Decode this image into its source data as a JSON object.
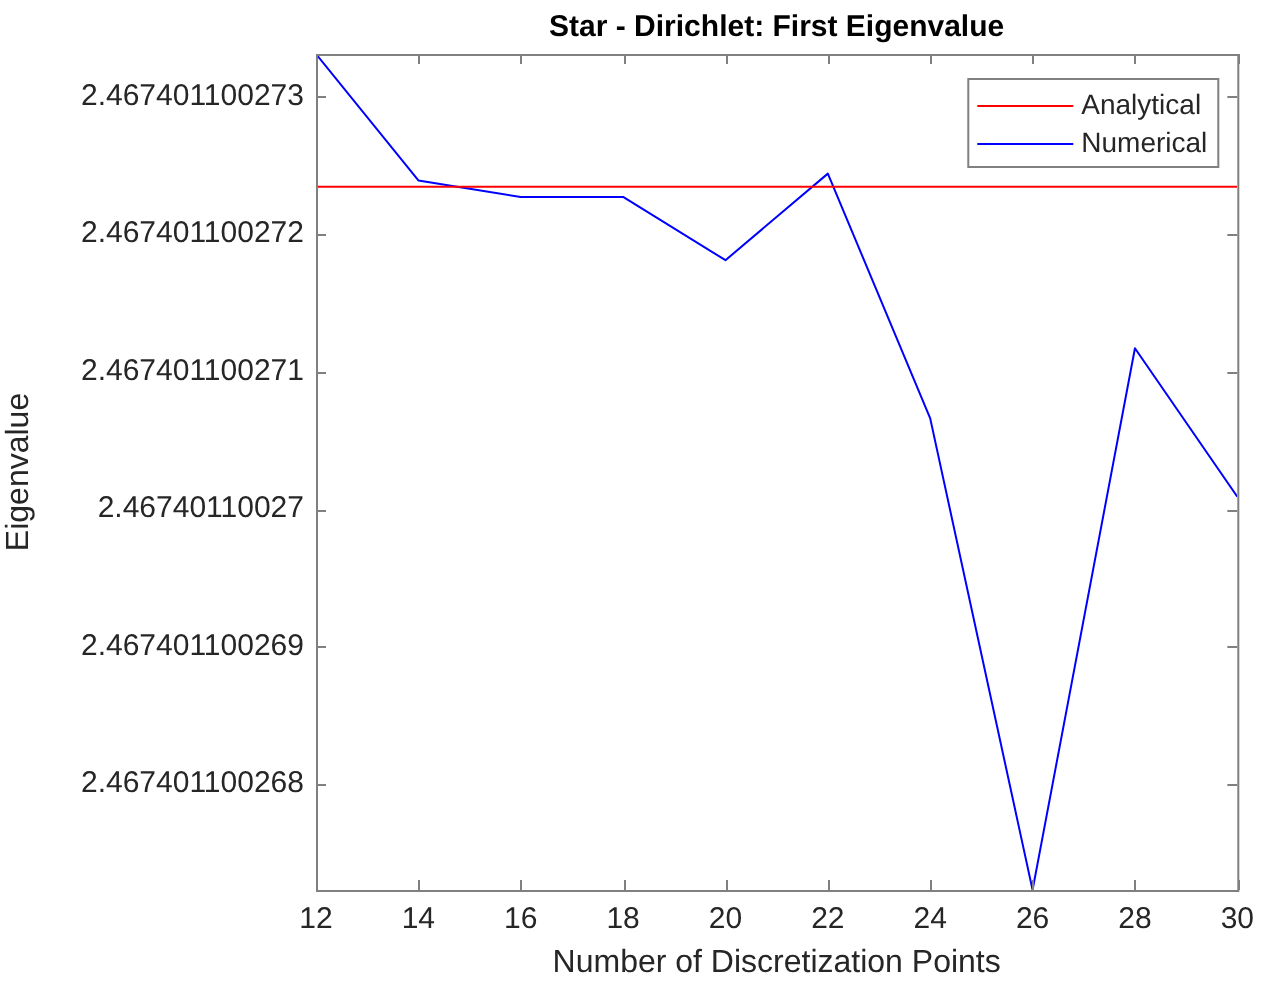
{
  "chart_data": {
    "type": "line",
    "title": "Star - Dirichlet: First Eigenvalue",
    "xlabel": "Number of Discretization Points",
    "ylabel": "Eigenvalue",
    "x": [
      12,
      14,
      16,
      18,
      20,
      22,
      24,
      26,
      28,
      30
    ],
    "series": [
      {
        "name": "Analytical",
        "color": "#ff0000",
        "values": [
          2.467401100272345,
          2.467401100272345,
          2.467401100272345,
          2.467401100272345,
          2.467401100272345,
          2.467401100272345,
          2.467401100272345,
          2.467401100272345,
          2.467401100272345,
          2.467401100272345
        ]
      },
      {
        "name": "Numerical",
        "color": "#0000ff",
        "values": [
          2.46740110027331,
          2.46740110027239,
          2.46740110027227,
          2.46740110027227,
          2.46740110027181,
          2.46740110027244,
          2.46740110027066,
          2.46740110026723,
          2.46740110027117,
          2.46740110027009
        ]
      }
    ],
    "xlim": [
      12,
      30
    ],
    "xticks": [
      12,
      14,
      16,
      18,
      20,
      22,
      24,
      26,
      28,
      30
    ],
    "ylim": [
      2.46740110026723,
      2.46740110027331
    ],
    "yticks": [
      2.467401100268,
      2.467401100269,
      2.46740110027,
      2.467401100271,
      2.467401100272,
      2.467401100273
    ],
    "grid": false,
    "legend": "top right",
    "marker": "none",
    "line_style": "solid"
  }
}
